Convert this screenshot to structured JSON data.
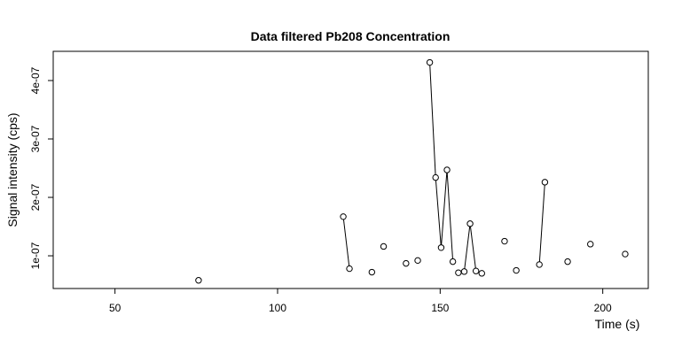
{
  "chart_data": {
    "type": "scatter",
    "title": "Data filtered Pb208 Concentration",
    "xlabel": "Time (s)",
    "ylabel": "Signal intensity (cps)",
    "xlim": [
      31,
      214
    ],
    "ylim": [
      4.4e-08,
      4.5e-07
    ],
    "x_ticks": [
      50,
      100,
      150,
      200
    ],
    "x_tick_labels": [
      "50",
      "100",
      "150",
      "200"
    ],
    "y_ticks": [
      1e-07,
      2e-07,
      3e-07,
      4e-07
    ],
    "y_tick_labels": [
      "1e-07",
      "2e-07",
      "3e-07",
      "4e-07"
    ],
    "points": [
      {
        "x": 75.7,
        "y": 5.8e-08
      },
      {
        "x": 120.2,
        "y": 1.67e-07
      },
      {
        "x": 122.1,
        "y": 7.8e-08
      },
      {
        "x": 129.0,
        "y": 7.2e-08
      },
      {
        "x": 132.6,
        "y": 1.16e-07
      },
      {
        "x": 139.5,
        "y": 8.7e-08
      },
      {
        "x": 143.1,
        "y": 9.2e-08
      },
      {
        "x": 146.8,
        "y": 4.31e-07
      },
      {
        "x": 148.6,
        "y": 2.34e-07
      },
      {
        "x": 150.3,
        "y": 1.14e-07
      },
      {
        "x": 152.1,
        "y": 2.47e-07
      },
      {
        "x": 153.9,
        "y": 9e-08
      },
      {
        "x": 155.6,
        "y": 7.1e-08
      },
      {
        "x": 157.4,
        "y": 7.3e-08
      },
      {
        "x": 159.2,
        "y": 1.55e-07
      },
      {
        "x": 161.0,
        "y": 7.4e-08
      },
      {
        "x": 162.8,
        "y": 7e-08
      },
      {
        "x": 169.8,
        "y": 1.25e-07
      },
      {
        "x": 173.4,
        "y": 7.5e-08
      },
      {
        "x": 180.5,
        "y": 8.5e-08
      },
      {
        "x": 182.2,
        "y": 2.26e-07
      },
      {
        "x": 189.2,
        "y": 9e-08
      },
      {
        "x": 196.2,
        "y": 1.2e-07
      },
      {
        "x": 206.9,
        "y": 1.03e-07
      }
    ],
    "line_segments": [
      [
        1,
        2
      ],
      [
        7,
        8
      ],
      [
        8,
        9
      ],
      [
        9,
        10
      ],
      [
        10,
        11
      ],
      [
        13,
        14
      ],
      [
        14,
        15
      ],
      [
        19,
        20
      ]
    ]
  }
}
